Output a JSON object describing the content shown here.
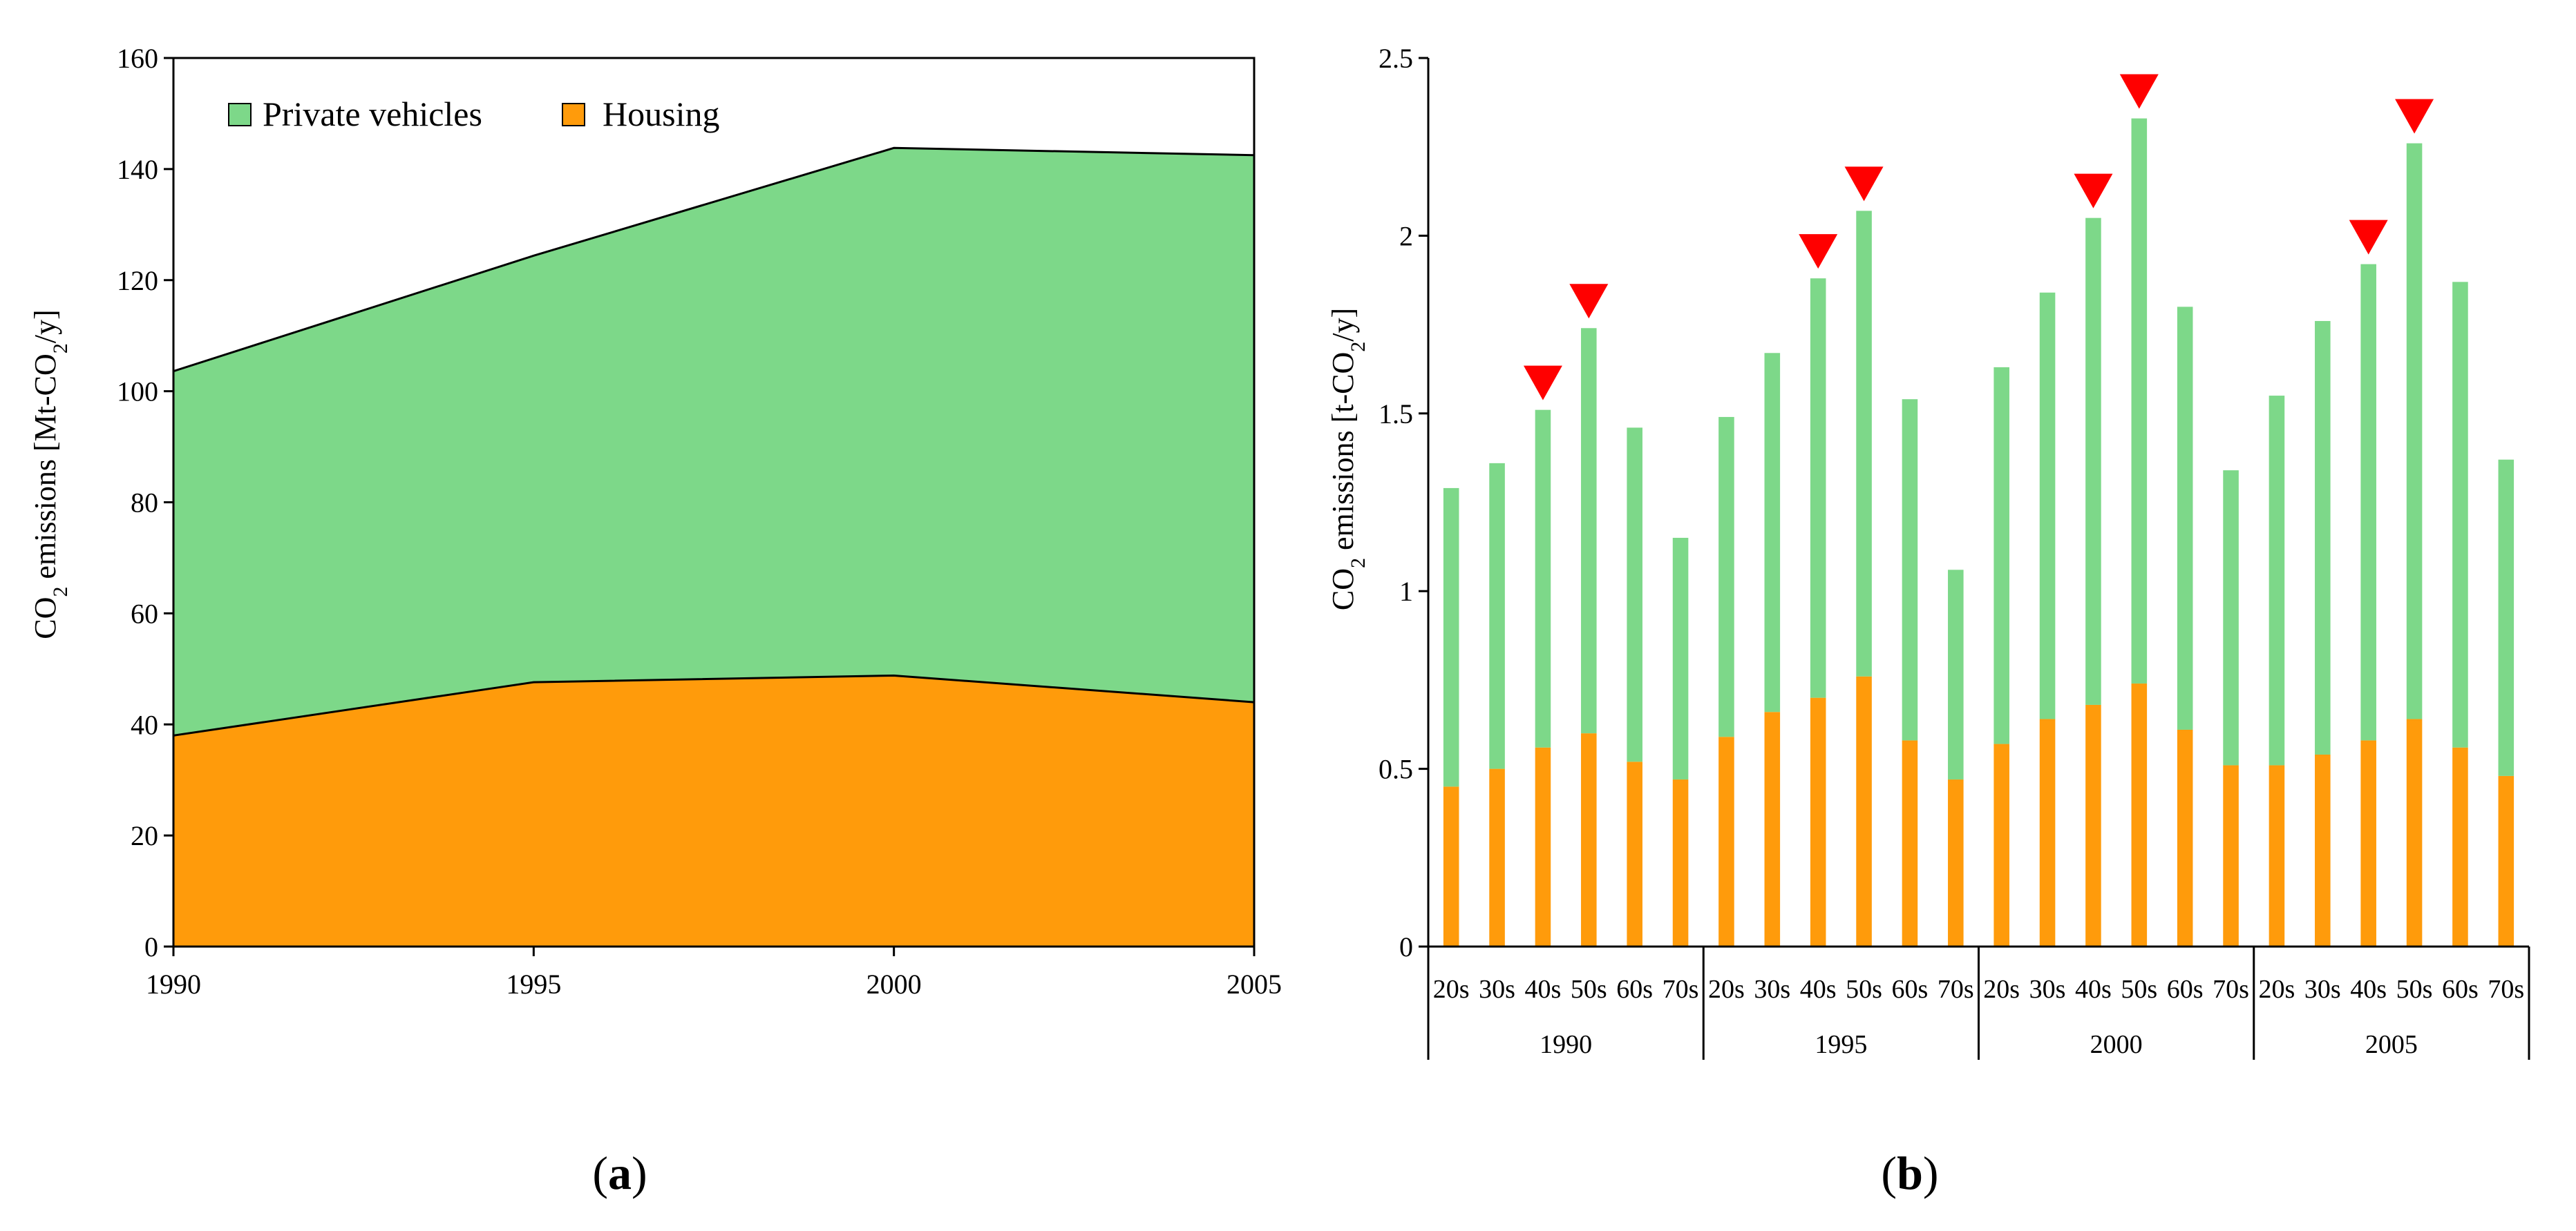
{
  "colors": {
    "housing": "#ff9b0b",
    "vehicles": "#7dd889",
    "marker": "#ff0000",
    "axis": "#000000"
  },
  "captions": {
    "a_letter": "a",
    "b_letter": "b",
    "open": "(",
    "close": ")"
  },
  "chart_data": [
    {
      "id": "a",
      "type": "area",
      "stacked": true,
      "x": [
        1990,
        1995,
        2000,
        2005
      ],
      "series": [
        {
          "name": "Housing",
          "values": [
            38,
            47.6,
            48.8,
            44
          ]
        },
        {
          "name": "Private vehicles",
          "values": [
            65.6,
            76.8,
            95,
            98.5
          ]
        }
      ],
      "ylabel_parts": [
        "CO",
        "2",
        " emissions [Mt-CO",
        "2",
        "/y]"
      ],
      "ylim": [
        0,
        160
      ],
      "yticks": [
        0,
        20,
        40,
        60,
        80,
        100,
        120,
        140,
        160
      ],
      "xticks": [
        "1990",
        "1995",
        "2000",
        "2005"
      ],
      "legend": [
        {
          "label": "Private vehicles",
          "series": "Private vehicles"
        },
        {
          "label": "Housing",
          "series": "Housing"
        }
      ],
      "legend_position": "top-left"
    },
    {
      "id": "b",
      "type": "bar",
      "stacked": true,
      "groups": [
        "1990",
        "1995",
        "2000",
        "2005"
      ],
      "categories": [
        "20s",
        "30s",
        "40s",
        "50s",
        "60s",
        "70s"
      ],
      "series": [
        {
          "name": "Housing",
          "values": [
            [
              0.45,
              0.5,
              0.56,
              0.6,
              0.52,
              0.47
            ],
            [
              0.59,
              0.66,
              0.7,
              0.76,
              0.58,
              0.47
            ],
            [
              0.57,
              0.64,
              0.68,
              0.74,
              0.61,
              0.51
            ],
            [
              0.51,
              0.54,
              0.58,
              0.64,
              0.56,
              0.48
            ]
          ]
        },
        {
          "name": "Private vehicles",
          "values": [
            [
              0.84,
              0.86,
              0.95,
              1.14,
              0.94,
              0.68
            ],
            [
              0.9,
              1.01,
              1.18,
              1.31,
              0.96,
              0.59
            ],
            [
              1.06,
              1.2,
              1.37,
              1.59,
              1.19,
              0.83
            ],
            [
              1.04,
              1.22,
              1.34,
              1.62,
              1.31,
              0.89
            ]
          ]
        }
      ],
      "totals": [
        [
          1.29,
          1.36,
          1.51,
          1.74,
          1.46,
          1.15
        ],
        [
          1.49,
          1.67,
          1.88,
          2.07,
          1.54,
          1.06
        ],
        [
          1.63,
          1.84,
          2.05,
          2.33,
          1.8,
          1.34
        ],
        [
          1.55,
          1.76,
          1.92,
          2.26,
          1.87,
          1.37
        ]
      ],
      "ylabel_parts": [
        "CO",
        "2",
        " emissions [t-CO",
        "2",
        "/y]"
      ],
      "ylim": [
        0,
        2.5
      ],
      "yticks": [
        "0",
        "0.5",
        "1",
        "1.5",
        "2",
        "2.5"
      ],
      "marked_bars": [
        {
          "group": "1990",
          "category": "40s"
        },
        {
          "group": "1990",
          "category": "50s"
        },
        {
          "group": "1995",
          "category": "40s"
        },
        {
          "group": "1995",
          "category": "50s"
        },
        {
          "group": "2000",
          "category": "40s"
        },
        {
          "group": "2000",
          "category": "50s"
        },
        {
          "group": "2005",
          "category": "40s"
        },
        {
          "group": "2005",
          "category": "50s"
        }
      ]
    }
  ]
}
